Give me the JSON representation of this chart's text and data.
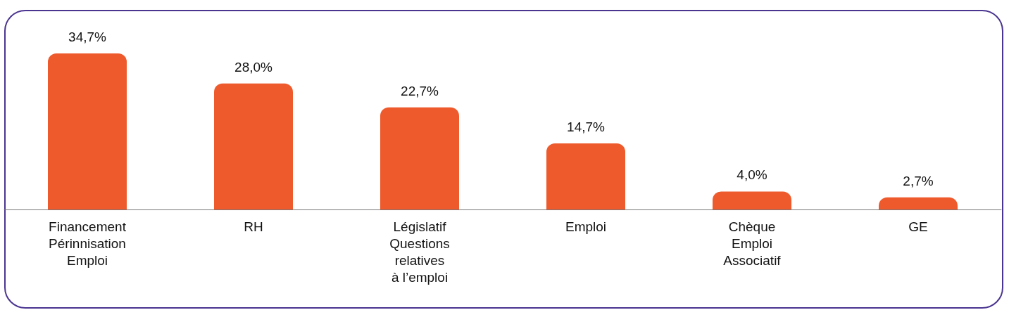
{
  "chart_data": {
    "type": "bar",
    "categories": [
      "Financement\nPérinnisation\nEmploi",
      "RH",
      "Législatif\nQuestions\nrelatives\nà l’emploi",
      "Emploi",
      "Chèque\nEmploi\nAssociatif",
      "GE"
    ],
    "values": [
      34.7,
      28.0,
      22.7,
      14.7,
      4.0,
      2.7
    ],
    "value_labels": [
      "34,7%",
      "28,0%",
      "22,7%",
      "14,7%",
      "4,0%",
      "2,7%"
    ],
    "color": "#ee5a2c"
  }
}
